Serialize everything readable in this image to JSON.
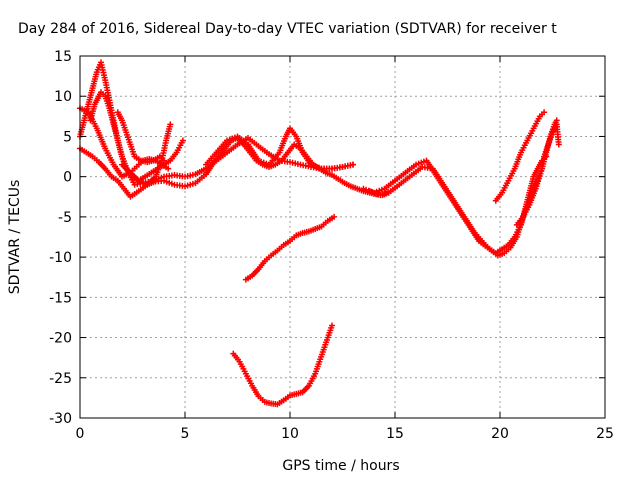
{
  "chart_data": {
    "type": "scatter",
    "title": "Day 284 of 2016, Sidereal Day-to-day VTEC variation (SDTVAR) for receiver t",
    "xlabel": "GPS time / hours",
    "ylabel": "SDTVAR / TECUs",
    "xlim": [
      0,
      25
    ],
    "ylim": [
      -30,
      15
    ],
    "xticks": [
      0,
      5,
      10,
      15,
      20,
      25
    ],
    "yticks": [
      -30,
      -25,
      -20,
      -15,
      -10,
      -5,
      0,
      5,
      10,
      15
    ],
    "grid": true,
    "legend": "none",
    "marker": "plus",
    "series_color": "#ff0000",
    "series": [
      {
        "x": [
          0.0,
          0.3,
          0.6,
          0.9,
          1.2,
          1.5,
          1.8,
          2.1,
          2.4,
          2.8,
          3.2,
          3.6,
          4.0,
          4.5,
          5.0,
          5.5,
          6.0,
          6.3,
          6.6,
          6.9,
          7.2,
          7.5,
          7.8,
          8.1,
          8.4,
          8.7,
          9.0,
          9.3,
          9.6,
          9.9,
          10.2,
          10.5,
          10.8,
          11.1,
          11.4,
          11.7,
          12.0,
          12.3,
          12.6,
          12.9,
          13.2,
          13.5,
          13.8,
          14.1,
          14.4,
          14.7
        ],
        "y": [
          3.5,
          3.0,
          2.5,
          1.8,
          1.0,
          0.0,
          -0.5,
          -1.5,
          -2.5,
          -1.8,
          -1.0,
          -0.6,
          -0.5,
          -1.0,
          -1.2,
          -0.8,
          0.3,
          1.5,
          2.5,
          3.5,
          4.5,
          4.8,
          4.0,
          3.0,
          2.0,
          1.5,
          1.2,
          1.5,
          2.0,
          3.0,
          4.0,
          3.5,
          2.5,
          1.5,
          1.0,
          0.5,
          0.2,
          -0.3,
          -0.8,
          -1.2,
          -1.5,
          -1.8,
          -2.0,
          -2.2,
          -2.3,
          -2.0
        ]
      },
      {
        "x": [
          0.5,
          0.7,
          0.9,
          1.0,
          1.2,
          1.4,
          1.6,
          1.8,
          2.0,
          2.3,
          2.6,
          3.0,
          3.5,
          4.0,
          4.5,
          5.0,
          5.5,
          6.0,
          6.5,
          7.0,
          7.5,
          8.0,
          8.5,
          9.0,
          9.5,
          10.0,
          10.5,
          11.0,
          11.5,
          12.0,
          12.5,
          13.0
        ],
        "y": [
          7.0,
          9.0,
          10.0,
          10.5,
          10.0,
          8.5,
          6.5,
          4.5,
          2.5,
          0.5,
          -1.0,
          -0.8,
          -0.5,
          0.0,
          0.2,
          0.0,
          0.3,
          1.0,
          2.0,
          3.0,
          4.0,
          4.8,
          3.8,
          2.8,
          2.0,
          1.8,
          1.5,
          1.2,
          1.0,
          1.0,
          1.2,
          1.5
        ]
      },
      {
        "x": [
          0.0,
          0.2,
          0.4,
          0.6,
          0.8,
          1.0,
          1.2,
          1.4,
          1.6,
          1.8,
          2.0,
          2.2,
          2.5,
          2.8,
          3.1,
          3.4,
          3.7,
          4.0,
          4.3,
          4.6,
          4.9
        ],
        "y": [
          5.0,
          7.0,
          9.0,
          11.0,
          13.0,
          14.2,
          12.0,
          9.5,
          7.0,
          4.5,
          2.5,
          1.0,
          0.0,
          -0.5,
          0.0,
          0.5,
          1.0,
          1.5,
          2.0,
          3.0,
          4.5
        ]
      },
      {
        "x": [
          0.0,
          0.4,
          0.8,
          1.2,
          1.6,
          2.0,
          2.4,
          2.6,
          2.8,
          3.0,
          3.3,
          3.6,
          3.9,
          4.2
        ],
        "y": [
          8.5,
          8.0,
          6.0,
          3.5,
          1.5,
          0.0,
          0.5,
          1.0,
          1.5,
          2.0,
          2.2,
          2.0,
          1.5,
          1.0
        ]
      },
      {
        "x": [
          1.8,
          2.0,
          2.2,
          2.4,
          2.6,
          2.9,
          3.2,
          3.5,
          3.8,
          4.0
        ],
        "y": [
          8.0,
          7.0,
          5.5,
          4.0,
          2.5,
          2.0,
          1.8,
          2.0,
          2.5,
          2.0
        ]
      },
      {
        "x": [
          2.0,
          2.4,
          2.8,
          3.2,
          3.6,
          3.9,
          4.1,
          4.3
        ],
        "y": [
          1.5,
          0.5,
          -0.5,
          -1.0,
          0.0,
          2.0,
          4.5,
          6.5
        ]
      },
      {
        "x": [
          6.0,
          6.5,
          7.0,
          7.5,
          8.0,
          8.5,
          9.0,
          9.5,
          9.8,
          10.0,
          10.3,
          10.6,
          11.0,
          11.5,
          12.0,
          12.5,
          13.0
        ],
        "y": [
          1.5,
          3.0,
          4.5,
          5.0,
          4.0,
          2.0,
          1.5,
          3.0,
          5.0,
          6.0,
          5.0,
          3.0,
          1.5,
          1.0,
          1.0,
          1.2,
          1.5
        ]
      },
      {
        "x": [
          13.5,
          14.0,
          14.5,
          15.0,
          15.5,
          16.0,
          16.5,
          17.0,
          17.5,
          18.0,
          18.5,
          19.0,
          19.5,
          19.8,
          20.1,
          20.4,
          20.7,
          21.0,
          21.2,
          21.4,
          21.6,
          21.8,
          22.0,
          22.2
        ],
        "y": [
          -1.5,
          -2.0,
          -1.5,
          -0.5,
          0.5,
          1.5,
          2.0,
          0.0,
          -2.0,
          -4.0,
          -6.0,
          -8.0,
          -9.0,
          -9.5,
          -9.0,
          -8.5,
          -7.5,
          -6.0,
          -4.0,
          -2.0,
          0.0,
          1.0,
          2.0,
          2.5
        ]
      },
      {
        "x": [
          13.8,
          14.3,
          14.8,
          15.3,
          15.8,
          16.3,
          16.8,
          17.3,
          17.8,
          18.3,
          18.8,
          19.3,
          19.6,
          19.9,
          20.2,
          20.5,
          20.8,
          21.1,
          21.4,
          21.7,
          22.0
        ],
        "y": [
          -1.8,
          -2.3,
          -1.8,
          -0.8,
          0.2,
          1.2,
          1.0,
          -1.0,
          -3.0,
          -5.0,
          -7.0,
          -8.5,
          -9.2,
          -9.8,
          -9.5,
          -8.8,
          -7.5,
          -5.0,
          -3.0,
          -1.0,
          1.0
        ]
      },
      {
        "x": [
          19.8,
          20.1,
          20.4,
          20.7,
          21.0,
          21.3,
          21.6,
          21.9,
          22.1
        ],
        "y": [
          -3.0,
          -2.0,
          -0.5,
          1.0,
          3.0,
          4.5,
          6.0,
          7.5,
          8.0
        ]
      },
      {
        "x": [
          20.8,
          21.1,
          21.4,
          21.7,
          22.0,
          22.2,
          22.4,
          22.6,
          22.7
        ],
        "y": [
          -6.0,
          -5.0,
          -3.5,
          -1.5,
          1.0,
          3.0,
          5.0,
          6.5,
          7.0
        ]
      },
      {
        "x": [
          22.1,
          22.3,
          22.5,
          22.7,
          22.8
        ],
        "y": [
          2.5,
          4.0,
          5.5,
          6.5,
          4.0
        ]
      },
      {
        "x": [
          7.9,
          8.2,
          8.5,
          8.8,
          9.1,
          9.4,
          9.7,
          10.0,
          10.3,
          10.6,
          10.9,
          11.2,
          11.5,
          11.8,
          12.1
        ],
        "y": [
          -12.8,
          -12.3,
          -11.5,
          -10.5,
          -9.8,
          -9.2,
          -8.5,
          -8.0,
          -7.3,
          -7.0,
          -6.8,
          -6.5,
          -6.2,
          -5.5,
          -5.0
        ]
      },
      {
        "x": [
          7.3,
          7.6,
          7.9,
          8.2,
          8.5,
          8.8,
          9.1,
          9.4,
          9.7,
          10.0,
          10.3,
          10.6,
          10.9,
          11.2,
          11.4,
          11.6,
          11.8,
          12.0
        ],
        "y": [
          -22.0,
          -23.0,
          -24.5,
          -26.0,
          -27.3,
          -28.0,
          -28.2,
          -28.3,
          -27.8,
          -27.2,
          -27.0,
          -26.8,
          -26.0,
          -24.5,
          -23.0,
          -21.5,
          -20.0,
          -18.5
        ]
      }
    ]
  }
}
